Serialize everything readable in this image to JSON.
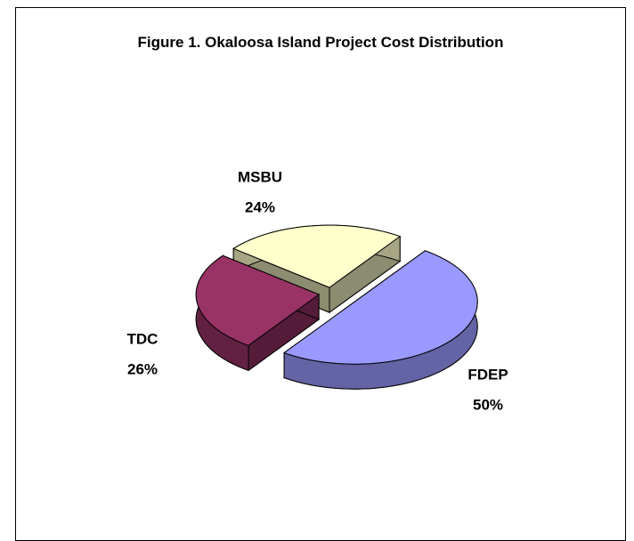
{
  "chart_data": {
    "type": "pie3d",
    "title": "Figure 1.  Okaloosa Island Project Cost Distribution",
    "categories": [
      "FDEP",
      "TDC",
      "MSBU"
    ],
    "values": [
      50,
      26,
      24
    ],
    "value_labels": [
      "50%",
      "26%",
      "24%"
    ],
    "colors": [
      "#9999ff",
      "#993366",
      "#ffffcc"
    ],
    "legend": false
  }
}
